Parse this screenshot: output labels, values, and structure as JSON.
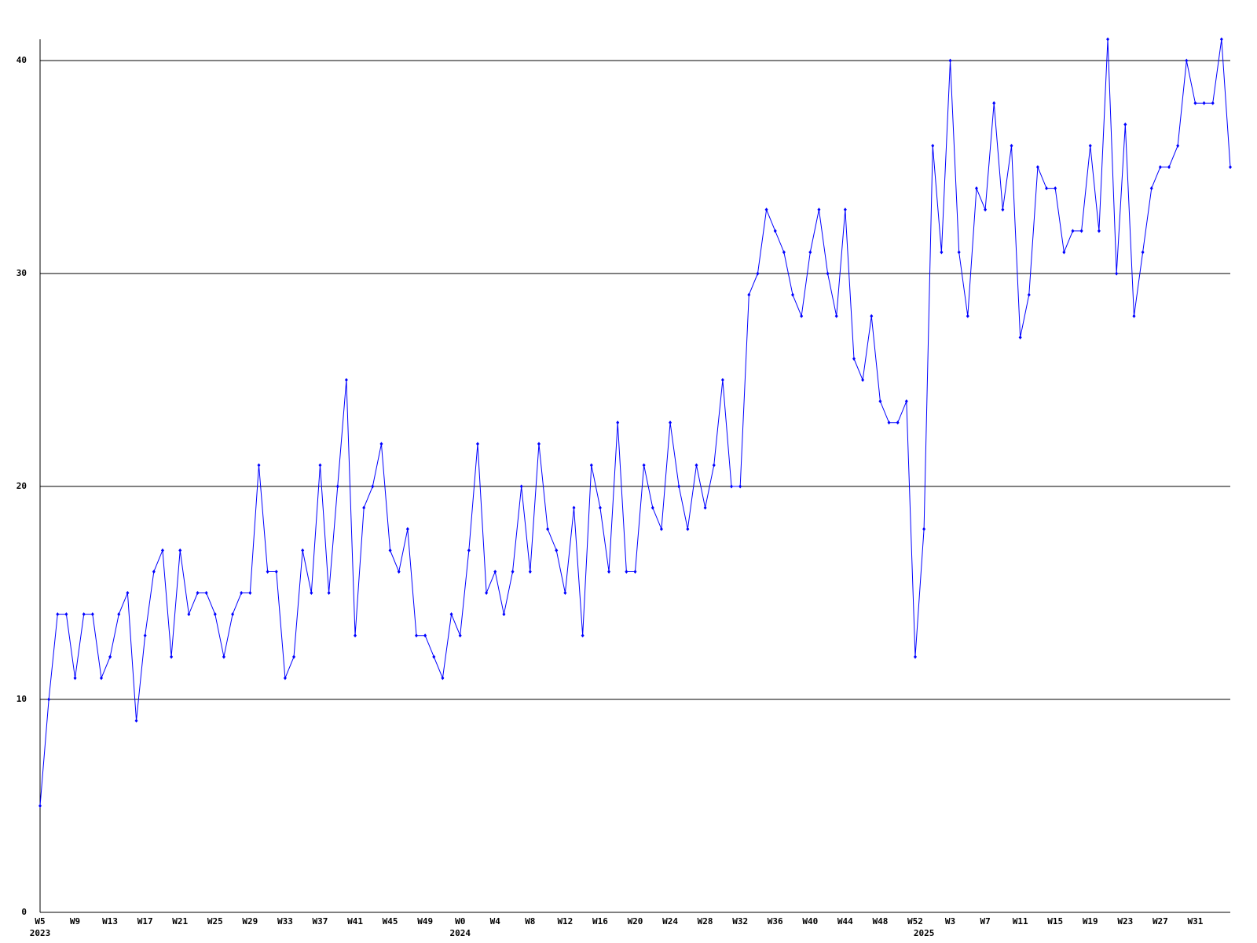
{
  "chart_data": {
    "type": "line",
    "categories": [
      "W5",
      null,
      null,
      null,
      "W9",
      null,
      null,
      null,
      "W13",
      null,
      null,
      null,
      "W17",
      null,
      null,
      null,
      "W21",
      null,
      null,
      null,
      "W25",
      null,
      null,
      null,
      "W29",
      null,
      null,
      null,
      "W33",
      null,
      null,
      null,
      "W37",
      null,
      null,
      null,
      "W41",
      null,
      null,
      null,
      "W45",
      null,
      null,
      null,
      "W49",
      null,
      null,
      null,
      "W0",
      null,
      null,
      null,
      "W4",
      null,
      null,
      null,
      "W8",
      null,
      null,
      null,
      "W12",
      null,
      null,
      null,
      "W16",
      null,
      null,
      null,
      "W20",
      null,
      null,
      null,
      "W24",
      null,
      null,
      null,
      "W28",
      null,
      null,
      null,
      "W32",
      null,
      null,
      null,
      "W36",
      null,
      null,
      null,
      "W40",
      null,
      null,
      null,
      "W44",
      null,
      null,
      null,
      "W48",
      null,
      null,
      null,
      "W52",
      null,
      null,
      null,
      "W3",
      null,
      null,
      null,
      "W7",
      null,
      null,
      null,
      "W11",
      null,
      null,
      null,
      "W15",
      null,
      null,
      null,
      "W19",
      null,
      null,
      null,
      "W23",
      null,
      null,
      null,
      "W27",
      null,
      null,
      null,
      "W31",
      null,
      null,
      null,
      null
    ],
    "category_years": [
      "2023",
      null,
      null,
      null,
      null,
      null,
      null,
      null,
      null,
      null,
      null,
      null,
      null,
      null,
      null,
      null,
      null,
      null,
      null,
      null,
      null,
      null,
      null,
      null,
      null,
      null,
      null,
      null,
      null,
      null,
      null,
      null,
      null,
      null,
      null,
      null,
      null,
      null,
      null,
      null,
      null,
      null,
      null,
      null,
      null,
      null,
      null,
      null,
      "2024",
      null,
      null,
      null,
      null,
      null,
      null,
      null,
      null,
      null,
      null,
      null,
      null,
      null,
      null,
      null,
      null,
      null,
      null,
      null,
      null,
      null,
      null,
      null,
      null,
      null,
      null,
      null,
      null,
      null,
      null,
      null,
      null,
      null,
      null,
      null,
      null,
      null,
      null,
      null,
      null,
      null,
      null,
      null,
      null,
      null,
      null,
      null,
      null,
      null,
      null,
      null,
      null,
      "2025",
      null,
      null,
      null,
      null,
      null,
      null,
      null,
      null,
      null,
      null,
      null,
      null,
      null,
      null,
      null,
      null,
      null,
      null,
      null,
      null,
      null,
      null,
      null,
      null,
      null,
      null,
      null,
      null,
      null,
      null,
      null,
      null,
      null,
      null,
      null
    ],
    "series": [
      {
        "color": "#0000ff",
        "values": [
          5,
          10,
          14,
          14,
          11,
          14,
          14,
          11,
          12,
          14,
          15,
          9,
          13,
          16,
          17,
          12,
          17,
          14,
          15,
          15,
          14,
          12,
          14,
          15,
          15,
          21,
          16,
          16,
          11,
          12,
          17,
          15,
          21,
          15,
          20,
          25,
          13,
          19,
          20,
          22,
          17,
          16,
          18,
          13,
          13,
          12,
          11,
          14,
          13,
          17,
          22,
          15,
          16,
          14,
          16,
          20,
          16,
          22,
          18,
          17,
          15,
          19,
          13,
          21,
          19,
          16,
          23,
          16,
          16,
          21,
          19,
          18,
          23,
          20,
          18,
          21,
          19,
          21,
          25,
          20,
          20,
          29,
          30,
          33,
          32,
          31,
          29,
          28,
          31,
          33,
          30,
          28,
          33,
          26,
          25,
          28,
          24,
          23,
          23,
          24,
          12,
          18,
          36,
          31,
          40,
          31,
          28,
          34,
          33,
          38,
          33,
          36,
          27,
          29,
          35,
          34,
          34,
          31,
          32,
          32,
          36,
          32,
          41,
          30,
          37,
          28,
          31,
          34,
          35,
          35,
          36,
          40,
          38,
          38,
          38,
          41,
          35
        ]
      }
    ],
    "ylim": [
      0,
      41
    ],
    "yticks": [
      0,
      10,
      20,
      30,
      40
    ],
    "grid": true
  }
}
